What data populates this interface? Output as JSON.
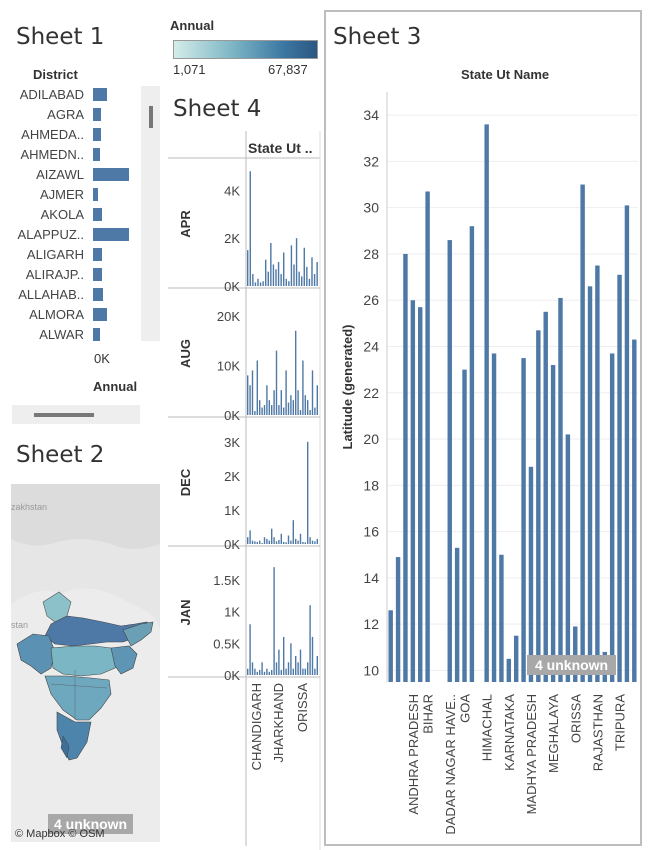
{
  "sheet1": {
    "title": "Sheet 1",
    "header": "District",
    "axis_tick": "0K",
    "axis_title": "Annual",
    "rows": [
      {
        "label": "ADILABAD",
        "value": 0.14
      },
      {
        "label": "AGRA",
        "value": 0.08
      },
      {
        "label": "AHMEDA..",
        "value": 0.08
      },
      {
        "label": "AHMEDN..",
        "value": 0.07
      },
      {
        "label": "AIZAWL",
        "value": 0.37
      },
      {
        "label": "AJMER",
        "value": 0.05
      },
      {
        "label": "AKOLA",
        "value": 0.09
      },
      {
        "label": "ALAPPUZ..",
        "value": 0.37
      },
      {
        "label": "ALIGARH",
        "value": 0.09
      },
      {
        "label": "ALIRAJP..",
        "value": 0.09
      },
      {
        "label": "ALLAHAB..",
        "value": 0.1
      },
      {
        "label": "ALMORA",
        "value": 0.14
      },
      {
        "label": "ALWAR",
        "value": 0.07
      }
    ]
  },
  "legend": {
    "title": "Annual",
    "min": "1,071",
    "max": "67,837",
    "color_low": "#cfe8e6",
    "color_high": "#2a5783"
  },
  "sheet2": {
    "title": "Sheet 2",
    "map_label_kazakhstan": "zakhstan",
    "map_label_stan": "stan",
    "unknown": "4 unknown",
    "attribution": "© Mapbox © OSM"
  },
  "sheet4": {
    "title": "Sheet 4",
    "col_header": "State Ut ..",
    "rows": [
      {
        "name": "APR",
        "ticks": [
          "4K",
          "2K",
          "0K"
        ]
      },
      {
        "name": "AUG",
        "ticks": [
          "20K",
          "10K",
          "0K"
        ]
      },
      {
        "name": "DEC",
        "ticks": [
          "3K",
          "2K",
          "1K",
          "0K"
        ]
      },
      {
        "name": "JAN",
        "ticks": [
          "1.5K",
          "1K",
          "0.5K",
          "0K"
        ]
      }
    ],
    "x_labels": [
      "CHANDIGARH",
      "JHARKHAND",
      "ORISSA"
    ]
  },
  "sheet3": {
    "title": "Sheet 3",
    "col_header": "State Ut Name",
    "unknown": "4 unknown"
  },
  "chart_data": [
    {
      "type": "bar",
      "id": "sheet3",
      "xlabel": "",
      "ylabel": "Latitude (generated)",
      "ylim": [
        9.5,
        35
      ],
      "yticks": [
        10,
        12,
        14,
        16,
        18,
        20,
        22,
        24,
        26,
        28,
        30,
        32,
        34
      ],
      "color": "#4e79a7",
      "values": [
        12.6,
        14.9,
        28.0,
        26.0,
        25.7,
        30.7,
        null,
        null,
        28.6,
        15.3,
        23.0,
        29.2,
        null,
        33.6,
        23.7,
        15.0,
        10.5,
        11.5,
        23.5,
        18.8,
        24.7,
        25.5,
        23.2,
        26.1,
        20.2,
        11.9,
        31.0,
        26.6,
        27.5,
        10.8,
        23.7,
        27.1,
        30.1,
        24.3
      ],
      "tick_labels": [
        {
          "index": 3,
          "label": "ANDHRA PRADESH"
        },
        {
          "index": 5,
          "label": "BIHAR"
        },
        {
          "index": 8,
          "label": "DADAR NAGAR HAVE.."
        },
        {
          "index": 10,
          "label": "GOA"
        },
        {
          "index": 13,
          "label": "HIMACHAL"
        },
        {
          "index": 16,
          "label": "KARNATAKA"
        },
        {
          "index": 19,
          "label": "MADHYA PRADESH"
        },
        {
          "index": 22,
          "label": "MEGHALAYA"
        },
        {
          "index": 25,
          "label": "ORISSA"
        },
        {
          "index": 28,
          "label": "RAJASTHAN"
        },
        {
          "index": 31,
          "label": "TRIPURA"
        }
      ]
    },
    {
      "type": "bar",
      "id": "sheet4",
      "panes": [
        {
          "name": "APR",
          "max": 4600,
          "values": [
            1500,
            4800,
            500,
            150,
            300,
            150,
            200,
            1100,
            600,
            1800,
            900,
            700,
            1000,
            500,
            1400,
            300,
            200,
            1700,
            900,
            2000,
            600,
            400,
            1600,
            800,
            300,
            1200,
            500,
            1000
          ]
        },
        {
          "name": "AUG",
          "max": 22000,
          "values": [
            8000,
            6000,
            9000,
            800,
            11000,
            3000,
            1500,
            2000,
            6000,
            3000,
            2000,
            5000,
            13000,
            2000,
            5000,
            1500,
            9000,
            2500,
            4000,
            3000,
            17000,
            5000,
            1000,
            11000,
            4000,
            3000,
            1000,
            9000,
            1500,
            6000
          ]
        },
        {
          "name": "DEC",
          "max": 3200,
          "values": [
            200,
            400,
            100,
            80,
            60,
            100,
            30,
            200,
            150,
            100,
            450,
            200,
            80,
            120,
            300,
            60,
            50,
            250,
            100,
            700,
            150,
            100,
            300,
            60,
            50,
            3000,
            200,
            100,
            80,
            150
          ]
        },
        {
          "name": "JAN",
          "max": 1750,
          "values": [
            100,
            800,
            200,
            100,
            50,
            80,
            200,
            50,
            100,
            50,
            80,
            1700,
            200,
            400,
            80,
            600,
            100,
            200,
            500,
            100,
            300,
            200,
            400,
            100,
            100,
            200,
            1100,
            600,
            100,
            300
          ]
        }
      ]
    }
  ]
}
